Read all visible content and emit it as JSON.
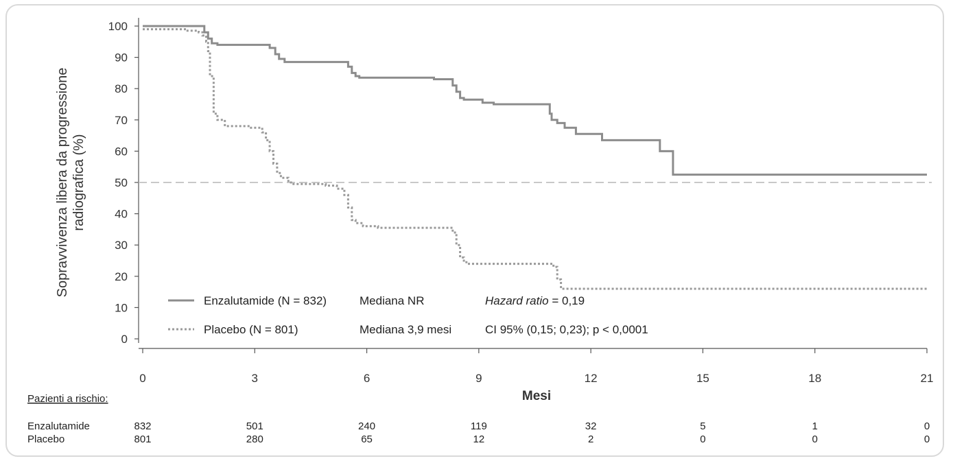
{
  "chart_data": {
    "type": "line",
    "ylabel_line1": "Sopravvivenza libera da progressione",
    "ylabel_line2": "radiografica (%)",
    "xlabel": "Mesi",
    "xlim": [
      0,
      21
    ],
    "ylim": [
      0,
      100
    ],
    "x_ticks": [
      0,
      3,
      6,
      9,
      12,
      15,
      18,
      21
    ],
    "y_ticks": [
      0,
      10,
      20,
      30,
      40,
      50,
      60,
      70,
      80,
      90,
      100
    ],
    "reference_line_y": 50,
    "series": [
      {
        "name": "Enzalutamide (N = 832)",
        "style": "solid",
        "color": "#8c8c8c",
        "points": [
          [
            0,
            100
          ],
          [
            1.6,
            100
          ],
          [
            1.65,
            98
          ],
          [
            1.75,
            96
          ],
          [
            1.85,
            94.5
          ],
          [
            2.0,
            94
          ],
          [
            3.3,
            94
          ],
          [
            3.4,
            93
          ],
          [
            3.55,
            91
          ],
          [
            3.65,
            89.5
          ],
          [
            3.8,
            88.5
          ],
          [
            5.4,
            88.5
          ],
          [
            5.5,
            87
          ],
          [
            5.6,
            85
          ],
          [
            5.7,
            84
          ],
          [
            5.8,
            83.5
          ],
          [
            7.7,
            83.5
          ],
          [
            7.8,
            83
          ],
          [
            8.2,
            83
          ],
          [
            8.3,
            81
          ],
          [
            8.4,
            79
          ],
          [
            8.5,
            77
          ],
          [
            8.6,
            76.5
          ],
          [
            9.0,
            76.5
          ],
          [
            9.1,
            75.5
          ],
          [
            9.4,
            75
          ],
          [
            10.8,
            75
          ],
          [
            10.9,
            72
          ],
          [
            10.95,
            70
          ],
          [
            11.1,
            69
          ],
          [
            11.3,
            67.5
          ],
          [
            11.6,
            65.5
          ],
          [
            12.3,
            65.5
          ],
          [
            12.3,
            63.5
          ],
          [
            13.8,
            63.5
          ],
          [
            13.85,
            60
          ],
          [
            14.15,
            60
          ],
          [
            14.2,
            52.5
          ],
          [
            21,
            52.5
          ]
        ]
      },
      {
        "name": "Placebo (N = 801)",
        "style": "dotted",
        "color": "#9a9a9a",
        "points": [
          [
            0,
            99
          ],
          [
            1.1,
            99
          ],
          [
            1.2,
            98.5
          ],
          [
            1.5,
            98
          ],
          [
            1.6,
            97
          ],
          [
            1.7,
            95
          ],
          [
            1.75,
            92
          ],
          [
            1.8,
            84
          ],
          [
            1.9,
            72
          ],
          [
            2.0,
            70
          ],
          [
            2.2,
            68
          ],
          [
            2.9,
            67.5
          ],
          [
            3.1,
            67.5
          ],
          [
            3.2,
            66
          ],
          [
            3.3,
            63.5
          ],
          [
            3.4,
            60
          ],
          [
            3.5,
            56
          ],
          [
            3.6,
            53
          ],
          [
            3.7,
            51.5
          ],
          [
            3.9,
            50
          ],
          [
            4.0,
            49.5
          ],
          [
            4.8,
            49.5
          ],
          [
            4.9,
            49
          ],
          [
            5.2,
            48
          ],
          [
            5.4,
            46
          ],
          [
            5.5,
            42
          ],
          [
            5.6,
            38
          ],
          [
            5.7,
            37
          ],
          [
            5.9,
            36
          ],
          [
            6.3,
            35.5
          ],
          [
            8.2,
            35.5
          ],
          [
            8.3,
            34
          ],
          [
            8.4,
            30
          ],
          [
            8.5,
            26
          ],
          [
            8.6,
            24.5
          ],
          [
            8.7,
            24
          ],
          [
            10.9,
            24
          ],
          [
            11.0,
            23
          ],
          [
            11.1,
            19
          ],
          [
            11.2,
            16
          ],
          [
            21,
            16
          ]
        ]
      }
    ],
    "legend": [
      {
        "series": "Enzalutamide (N = 832)",
        "median": "Mediana NR",
        "stat_italic": "Hazard ratio",
        "stat_rest": " = 0,19"
      },
      {
        "series": "Placebo (N = 801)",
        "median": "Mediana 3,9 mesi",
        "stat_italic": "",
        "stat_rest": "CI 95% (0,15; 0,23); p < 0,0001"
      }
    ],
    "risk_table": {
      "title": "Pazienti a rischio:",
      "rows": [
        {
          "label": "Enzalutamide",
          "values": [
            "832",
            "501",
            "240",
            "119",
            "32",
            "5",
            "1",
            "0"
          ]
        },
        {
          "label": "Placebo",
          "values": [
            "801",
            "280",
            "65",
            "12",
            "2",
            "0",
            "0",
            "0"
          ]
        }
      ]
    }
  }
}
